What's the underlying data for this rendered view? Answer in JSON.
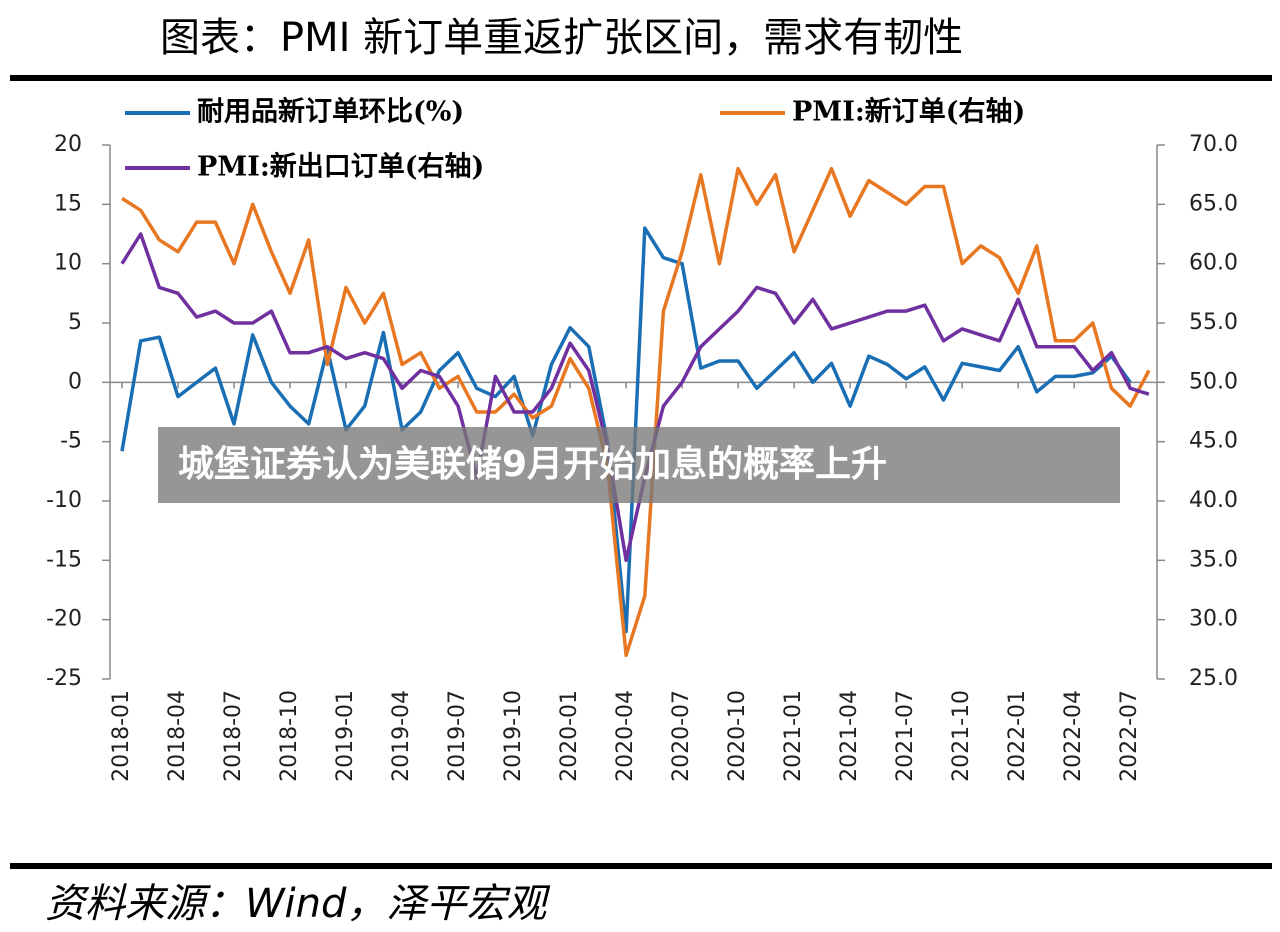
{
  "chart_data": {
    "type": "line",
    "title": "图表：PMI 新订单重返扩张区间，需求有韧性",
    "source": "资料来源：Wind，泽平宏观",
    "overlay_caption": "城堡证券认为美联储9月开始加息的概率上升",
    "categories": [
      "2018-01",
      null,
      null,
      "2018-04",
      null,
      null,
      "2018-07",
      null,
      null,
      "2018-10",
      null,
      null,
      "2019-01",
      null,
      null,
      "2019-04",
      null,
      null,
      "2019-07",
      null,
      null,
      "2019-10",
      null,
      null,
      "2020-01",
      null,
      null,
      "2020-04",
      null,
      null,
      "2020-07",
      null,
      null,
      "2020-10",
      null,
      null,
      "2021-01",
      null,
      null,
      "2021-04",
      null,
      null,
      "2021-07",
      null,
      null,
      "2021-10",
      null,
      null,
      "2022-01",
      null,
      null,
      "2022-04",
      null,
      null,
      "2022-07",
      null
    ],
    "series": [
      {
        "name": "耐用品新订单环比(%)",
        "color": "#1a6fb4",
        "axis": "y",
        "values": [
          -5.8,
          3.5,
          3.8,
          -1.2,
          0.0,
          1.2,
          -3.5,
          4.0,
          0.0,
          -2.0,
          -3.5,
          2.8,
          -4.0,
          -2.0,
          4.2,
          -4.0,
          -2.5,
          1.0,
          2.5,
          -0.5,
          -1.2,
          0.5,
          -4.5,
          1.5,
          4.6,
          3.0,
          -5,
          -21,
          13,
          10.5,
          10,
          1.2,
          1.8,
          1.8,
          -0.5,
          1.0,
          2.5,
          0,
          1.6,
          -2,
          2.2,
          1.5,
          0.3,
          1.3,
          -1.5,
          1.6,
          1.3,
          1.0,
          3.0,
          -0.8,
          0.5,
          0.5,
          0.8,
          2.2,
          0,
          null
        ]
      },
      {
        "name": "PMI:新订单(右轴)",
        "color": "#e87722",
        "axis": "y2",
        "values": [
          65.5,
          64.5,
          62,
          61,
          63.5,
          63.5,
          60,
          65,
          61,
          57.5,
          62,
          51.5,
          58,
          55,
          57.5,
          51.5,
          52.5,
          49.5,
          50.5,
          47.5,
          47.5,
          49,
          47,
          48,
          52,
          49.5,
          43,
          27,
          32,
          56,
          61,
          67.5,
          60,
          68,
          65,
          67.5,
          61,
          64.5,
          68,
          64,
          67,
          66,
          65,
          66.5,
          66.5,
          60,
          61.5,
          60.5,
          57.5,
          61.5,
          53.5,
          53.5,
          55,
          49.5,
          48,
          51
        ]
      },
      {
        "name": "PMI:新出口订单(右轴)",
        "color": "#7030a0",
        "axis": "y2",
        "values": [
          60,
          62.5,
          58,
          57.5,
          55.5,
          56,
          55,
          55,
          56,
          52.5,
          52.5,
          53,
          52,
          52.5,
          52,
          49.5,
          51,
          50.5,
          48,
          42,
          50.5,
          47.5,
          47.5,
          49.5,
          53.3,
          51,
          44.5,
          35,
          42,
          48,
          50,
          53,
          54.5,
          56,
          58,
          57.5,
          55,
          57,
          54.5,
          55,
          55.5,
          56,
          56,
          56.5,
          53.5,
          54.5,
          54,
          53.5,
          57,
          53,
          53,
          53,
          51,
          52.5,
          49.5,
          49
        ]
      }
    ],
    "ylim": [
      -25,
      20
    ],
    "yticks": [
      -25,
      -20,
      -15,
      -10,
      -5,
      0,
      5,
      10,
      15,
      20
    ],
    "y2lim": [
      25,
      70
    ],
    "y2ticks": [
      {
        "value": 25,
        "label": "25.0"
      },
      {
        "value": 30,
        "label": "30.0"
      },
      {
        "value": 35,
        "label": "35.0"
      },
      {
        "value": 40,
        "label": "40.0"
      },
      {
        "value": 45,
        "label": "45.0"
      },
      {
        "value": 50,
        "label": "50.0"
      },
      {
        "value": 55,
        "label": "55.0"
      },
      {
        "value": 60,
        "label": "60.0"
      },
      {
        "value": 65,
        "label": "65.0"
      },
      {
        "value": 70,
        "label": "70.0"
      }
    ]
  }
}
